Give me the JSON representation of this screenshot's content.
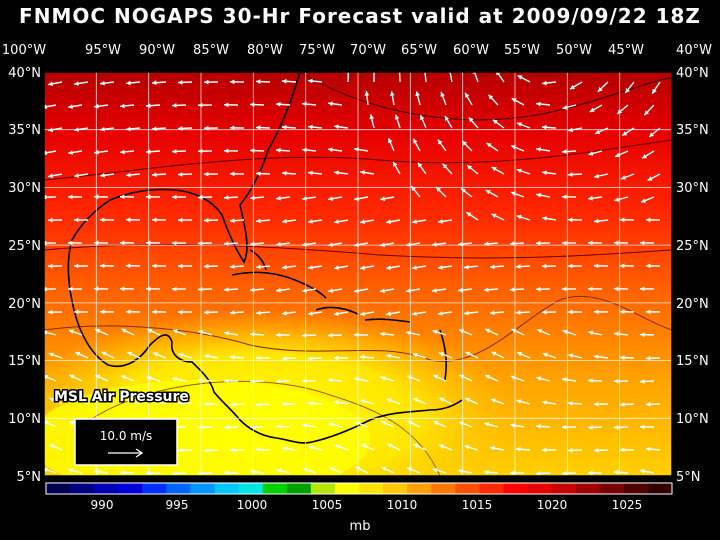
{
  "title": "FNMOC NOGAPS 30-Hr Forecast valid at 2009/09/22 18Z",
  "field_label": "MSL Air Pressure",
  "vector_scale_label": "10.0 m/s",
  "colorbar": {
    "unit": "mb",
    "labels": [
      "990",
      "995",
      "1000",
      "1005",
      "1010",
      "1015",
      "1020",
      "1025"
    ],
    "colors": [
      "#000050",
      "#000080",
      "#0000b4",
      "#0000dc",
      "#0030ff",
      "#0064ff",
      "#0096ff",
      "#00c8ff",
      "#00e6e6",
      "#00d200",
      "#00a000",
      "#b4e600",
      "#ffff00",
      "#ffe600",
      "#ffc800",
      "#ffa000",
      "#ff7800",
      "#ff5000",
      "#ff2800",
      "#ff0000",
      "#e60000",
      "#c80000",
      "#a00000",
      "#780000",
      "#500000",
      "#300000"
    ]
  },
  "axes": {
    "lon_labels": [
      "100°W",
      "95°W",
      "90°W",
      "85°W",
      "80°W",
      "75°W",
      "70°W",
      "65°W",
      "60°W",
      "55°W",
      "50°W",
      "45°W",
      "40°W"
    ],
    "lat_labels": [
      "40°N",
      "35°N",
      "30°N",
      "25°N",
      "20°N",
      "15°N",
      "10°N",
      "5°N"
    ]
  }
}
